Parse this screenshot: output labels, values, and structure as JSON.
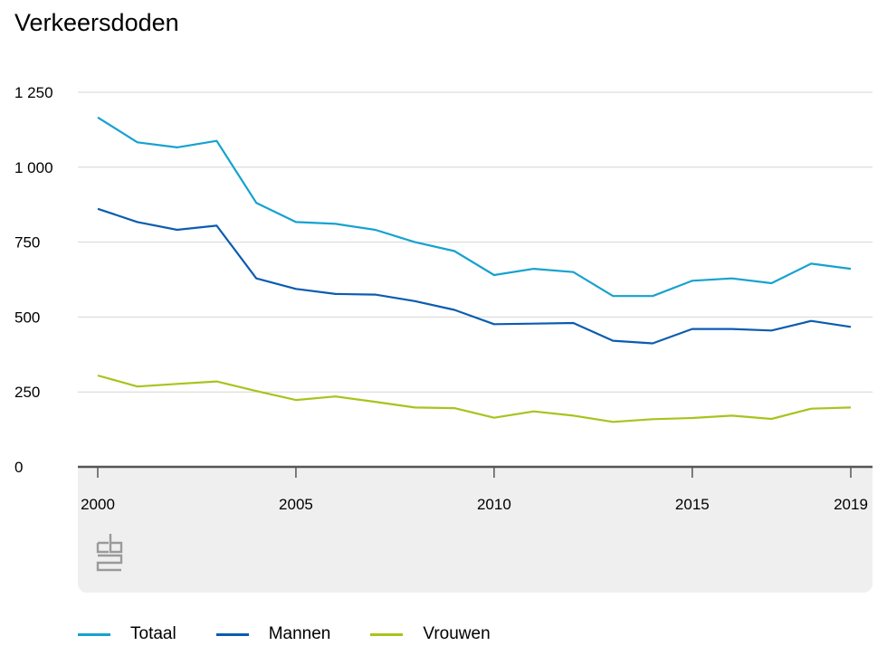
{
  "chart_data": {
    "type": "line",
    "title": "Verkeersdoden",
    "xlabel": "",
    "ylabel": "",
    "x": [
      2000,
      2001,
      2002,
      2003,
      2004,
      2005,
      2006,
      2007,
      2008,
      2009,
      2010,
      2011,
      2012,
      2013,
      2014,
      2015,
      2016,
      2017,
      2018,
      2019
    ],
    "x_tick_labels": [
      "2000",
      "2005",
      "2010",
      "2015",
      "2019"
    ],
    "x_ticks": [
      2000,
      2005,
      2010,
      2015,
      2019
    ],
    "y_ticks": [
      0,
      250,
      500,
      750,
      1000,
      1250
    ],
    "y_tick_labels": [
      "0",
      "250",
      "500",
      "750",
      "1 000",
      "1 250"
    ],
    "ylim": [
      0,
      1250
    ],
    "grid": true,
    "legend_position": "bottom",
    "series": [
      {
        "name": "Totaal",
        "color": "#15a2d0",
        "values": [
          1166,
          1083,
          1066,
          1088,
          881,
          817,
          811,
          791,
          750,
          720,
          640,
          661,
          650,
          570,
          570,
          621,
          629,
          613,
          678,
          661
        ]
      },
      {
        "name": "Mannen",
        "color": "#0b5cb0",
        "values": [
          861,
          817,
          791,
          805,
          629,
          594,
          577,
          575,
          553,
          524,
          476,
          478,
          480,
          421,
          412,
          460,
          460,
          455,
          487,
          467
        ]
      },
      {
        "name": "Vrouwen",
        "color": "#a9c31c",
        "values": [
          305,
          268,
          277,
          285,
          253,
          223,
          235,
          217,
          198,
          196,
          164,
          185,
          171,
          150,
          159,
          163,
          171,
          160,
          194,
          198
        ]
      }
    ]
  },
  "logo": "cbs-logo-icon"
}
